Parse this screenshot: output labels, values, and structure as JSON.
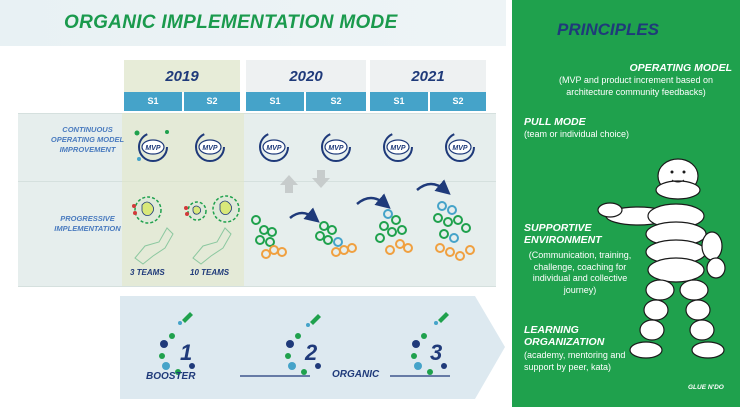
{
  "header": {
    "title": "ORGANIC IMPLEMENTATION MODE"
  },
  "timeline": {
    "years": [
      "2019",
      "2020",
      "2021"
    ],
    "semesters": [
      "S1",
      "S2",
      "S1",
      "S2",
      "S1",
      "S2"
    ]
  },
  "rows": {
    "continuous": "CONTINUOUS OPERATING MODEL IMPROVEMENT",
    "progressive": "PROGRESSIVE IMPLEMENTATION"
  },
  "mvp_label": "MVP",
  "teams": [
    "3 TEAMS",
    "10 TEAMS"
  ],
  "stages": {
    "numbers": [
      "1",
      "2",
      "3"
    ],
    "booster": "BOOSTER",
    "organic": "ORGANIC"
  },
  "principles": {
    "title": "PRINCIPLES",
    "items": [
      {
        "head": "OPERATING MODEL",
        "body": "(MVP and product increment based on architecture community feedbacks)"
      },
      {
        "head": "PULL MODE",
        "body": "(team or individual choice)"
      },
      {
        "head": "SUPPORTIVE ENVIRONMENT",
        "body": "(Communication, training, challenge, coaching for individual and collective journey)"
      },
      {
        "head": "LEARNING ORGANIZATION",
        "body": "(academy, mentoring and support by peer, kata)"
      }
    ]
  },
  "logo": "GLUE N'DO",
  "colors": {
    "green": "#1fa14d",
    "navy": "#1f3a7a",
    "blue": "#45a3c9",
    "orange": "#f0a040"
  }
}
